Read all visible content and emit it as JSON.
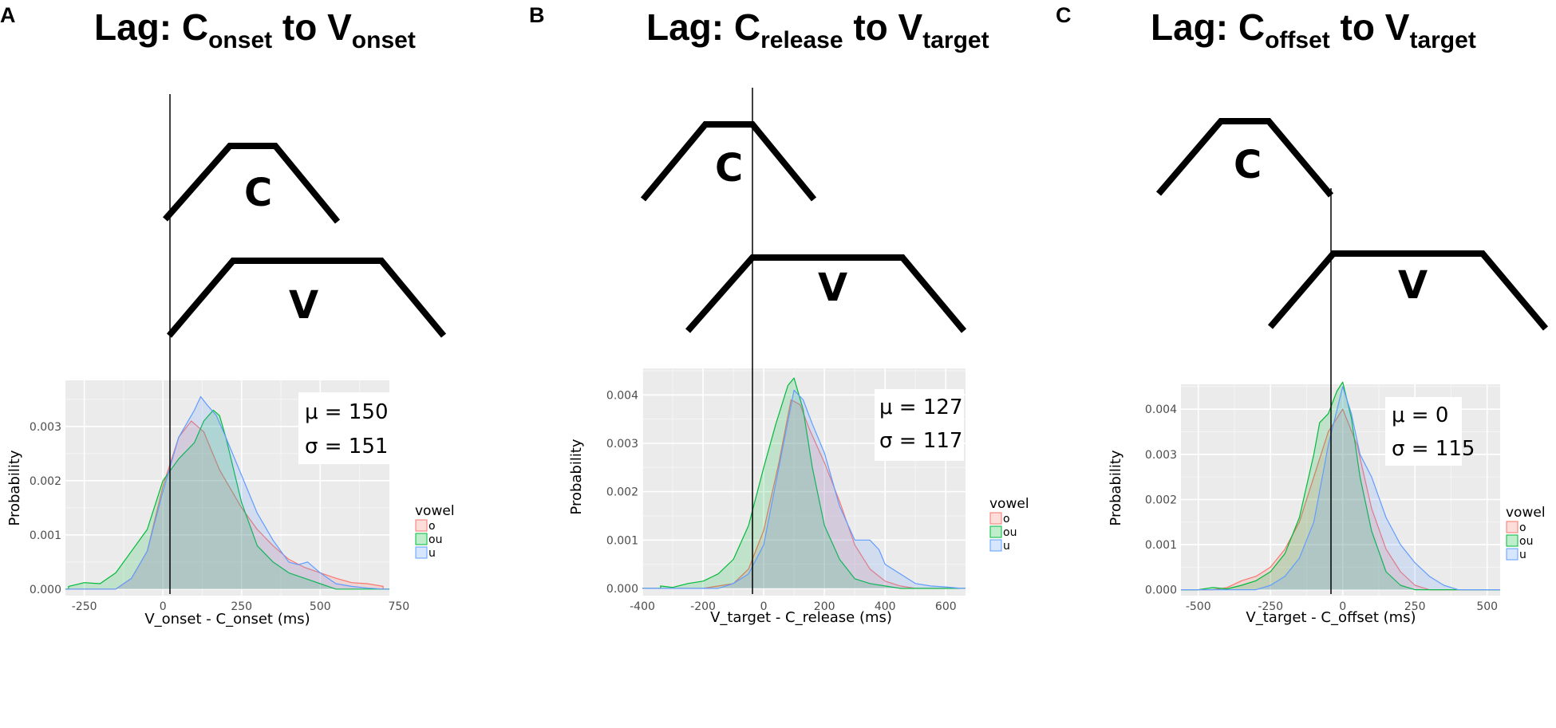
{
  "chart_data": [
    {
      "type": "area",
      "panel_label": "A",
      "title": {
        "base": "Lag: C",
        "sub1": "onset",
        "mid": " to V",
        "sub2": "onset"
      },
      "xlabel": "V_onset - C_onset (ms)",
      "ylabel": "Probability",
      "xlim": [
        -310,
        720
      ],
      "ylim": [
        -0.00012,
        0.00385
      ],
      "xticks": [
        -250,
        0,
        250,
        500,
        750
      ],
      "xtick_labels": [
        "-250",
        "0",
        "250",
        "500",
        "750"
      ],
      "yticks": [
        0,
        0.001,
        0.002,
        0.003
      ],
      "ytick_labels": [
        "0.000",
        "0.001",
        "0.002",
        "0.003"
      ],
      "vline_x": 0,
      "stats": {
        "mu": "μ = 150",
        "sigma": "σ = 151"
      },
      "gesture_labels": {
        "c": "C",
        "v": "V"
      },
      "legend": {
        "title": "vowel",
        "entries": [
          "o",
          "ou",
          "u"
        ]
      },
      "series": [
        {
          "name": "o",
          "color": "#F8766D",
          "fill": "#F8766D",
          "x": [
            -150,
            -100,
            -50,
            0,
            50,
            90,
            130,
            180,
            250,
            300,
            350,
            400,
            450,
            500,
            550,
            600,
            650,
            700
          ],
          "y": [
            0,
            0.0002,
            0.0007,
            0.0019,
            0.0028,
            0.0031,
            0.0029,
            0.0022,
            0.0015,
            0.0011,
            0.0008,
            0.00055,
            0.0004,
            0.0003,
            0.0002,
            0.00012,
            0.0001,
            5e-05
          ]
        },
        {
          "name": "ou",
          "color": "#00BA38",
          "fill": "#00BA38",
          "x": [
            -300,
            -250,
            -200,
            -150,
            -100,
            -50,
            0,
            50,
            100,
            130,
            160,
            180,
            200,
            250,
            300,
            350,
            400,
            450,
            500,
            550
          ],
          "y": [
            5e-05,
            0.00012,
            0.0001,
            0.0003,
            0.0007,
            0.0011,
            0.002,
            0.0024,
            0.0027,
            0.0031,
            0.0033,
            0.0032,
            0.0028,
            0.0016,
            0.0008,
            0.0005,
            0.0003,
            0.0002,
            0.0001,
            0
          ]
        },
        {
          "name": "u",
          "color": "#619CFF",
          "fill": "#619CFF",
          "x": [
            -150,
            -100,
            -50,
            0,
            50,
            100,
            120,
            140,
            170,
            200,
            250,
            300,
            350,
            400,
            430,
            460,
            500,
            550,
            600,
            650,
            700
          ],
          "y": [
            0,
            0.0002,
            0.0007,
            0.0018,
            0.0028,
            0.0033,
            0.00355,
            0.0034,
            0.0032,
            0.0028,
            0.0021,
            0.0014,
            0.0009,
            0.0005,
            0.00045,
            0.0005,
            0.0003,
            0.0001,
            5e-05,
            2e-05,
            0
          ]
        }
      ]
    },
    {
      "type": "area",
      "panel_label": "B",
      "title": {
        "base": "Lag: C",
        "sub1": "release",
        "mid": " to V",
        "sub2": "target"
      },
      "xlabel": "V_target - C_release (ms)",
      "ylabel": "Probability",
      "xlim": [
        -400,
        665
      ],
      "ylim": [
        -0.00015,
        0.00455
      ],
      "xticks": [
        -400,
        -200,
        0,
        200,
        400,
        600
      ],
      "xtick_labels": [
        "-400",
        "-200",
        "0",
        "200",
        "400",
        "600"
      ],
      "yticks": [
        0,
        0.001,
        0.002,
        0.003,
        0.004
      ],
      "ytick_labels": [
        "0.000",
        "0.001",
        "0.002",
        "0.003",
        "0.004"
      ],
      "vline_x": 0,
      "stats": {
        "mu": "μ = 127",
        "sigma": "σ = 117"
      },
      "gesture_labels": {
        "c": "C",
        "v": "V"
      },
      "legend": {
        "title": "vowel",
        "entries": [
          "o",
          "ou",
          "u"
        ]
      },
      "series": [
        {
          "name": "o",
          "color": "#F8766D",
          "fill": "#F8766D",
          "x": [
            -200,
            -150,
            -100,
            -50,
            0,
            50,
            90,
            120,
            150,
            200,
            250,
            300,
            350,
            400,
            450,
            500
          ],
          "y": [
            0,
            5e-05,
            0.0001,
            0.0004,
            0.0012,
            0.0026,
            0.0039,
            0.0038,
            0.0033,
            0.0026,
            0.0018,
            0.0009,
            0.0004,
            0.00015,
            5e-05,
            0
          ]
        },
        {
          "name": "ou",
          "color": "#00BA38",
          "fill": "#00BA38",
          "x": [
            -340,
            -300,
            -250,
            -200,
            -150,
            -100,
            -50,
            0,
            40,
            80,
            100,
            130,
            160,
            200,
            250,
            300,
            350,
            400,
            450
          ],
          "y": [
            5e-05,
            2e-05,
            0.0001,
            0.00015,
            0.0003,
            0.0006,
            0.0013,
            0.0025,
            0.0034,
            0.0042,
            0.00435,
            0.0037,
            0.0025,
            0.0013,
            0.0006,
            0.0002,
            0.0001,
            5e-05,
            0
          ]
        },
        {
          "name": "u",
          "color": "#619CFF",
          "fill": "#619CFF",
          "x": [
            -150,
            -100,
            -50,
            0,
            50,
            100,
            130,
            160,
            200,
            250,
            300,
            320,
            350,
            380,
            400,
            450,
            500,
            550,
            600,
            650
          ],
          "y": [
            0,
            0.0001,
            0.0003,
            0.0009,
            0.0025,
            0.0041,
            0.0039,
            0.0034,
            0.0028,
            0.0017,
            0.001,
            0.001,
            0.001,
            0.0008,
            0.0005,
            0.0003,
            0.0001,
            5e-05,
            3e-05,
            0
          ]
        }
      ]
    },
    {
      "type": "area",
      "panel_label": "C",
      "title": {
        "base": "Lag: C",
        "sub1": "offset",
        "mid": " to V",
        "sub2": "target"
      },
      "xlabel": "V_target - C_offset (ms)",
      "ylabel": "Probability",
      "xlim": [
        -560,
        545
      ],
      "ylim": [
        -0.00013,
        0.00455
      ],
      "xticks": [
        -500,
        -250,
        0,
        250,
        500
      ],
      "xtick_labels": [
        "-500",
        "-250",
        "0",
        "250",
        "500"
      ],
      "yticks": [
        0,
        0.001,
        0.002,
        0.003,
        0.004
      ],
      "ytick_labels": [
        "0.000",
        "0.001",
        "0.002",
        "0.003",
        "0.004"
      ],
      "vline_x": 0,
      "stats": {
        "mu": "μ = 0",
        "sigma": "σ = 115"
      },
      "gesture_labels": {
        "c": "C",
        "v": "V"
      },
      "legend": {
        "title": "vowel",
        "entries": [
          "o",
          "ou",
          "u"
        ]
      },
      "series": [
        {
          "name": "o",
          "color": "#F8766D",
          "fill": "#F8766D",
          "x": [
            -450,
            -400,
            -350,
            -300,
            -250,
            -200,
            -150,
            -100,
            -50,
            0,
            50,
            100,
            150,
            200,
            250,
            300
          ],
          "y": [
            0,
            5e-05,
            0.0002,
            0.0003,
            0.0005,
            0.0009,
            0.0015,
            0.0025,
            0.0035,
            0.004,
            0.0032,
            0.0018,
            0.0009,
            0.0004,
            0.0001,
            0
          ]
        },
        {
          "name": "ou",
          "color": "#00BA38",
          "fill": "#00BA38",
          "x": [
            -500,
            -450,
            -400,
            -350,
            -300,
            -250,
            -200,
            -150,
            -100,
            -80,
            -50,
            -20,
            0,
            30,
            60,
            100,
            150,
            200,
            250
          ],
          "y": [
            0,
            5e-05,
            2e-05,
            0.0001,
            0.0002,
            0.0004,
            0.0008,
            0.0016,
            0.003,
            0.0037,
            0.0039,
            0.0044,
            0.0046,
            0.0038,
            0.0025,
            0.0013,
            0.0004,
            0.0001,
            0
          ]
        },
        {
          "name": "u",
          "color": "#619CFF",
          "fill": "#619CFF",
          "x": [
            -300,
            -250,
            -200,
            -150,
            -100,
            -50,
            0,
            30,
            60,
            100,
            150,
            200,
            250,
            300,
            350,
            400
          ],
          "y": [
            0,
            0.0001,
            0.0003,
            0.0007,
            0.0015,
            0.0032,
            0.0045,
            0.0039,
            0.003,
            0.0025,
            0.0016,
            0.001,
            0.0006,
            0.0003,
            0.0001,
            0
          ]
        }
      ]
    }
  ]
}
